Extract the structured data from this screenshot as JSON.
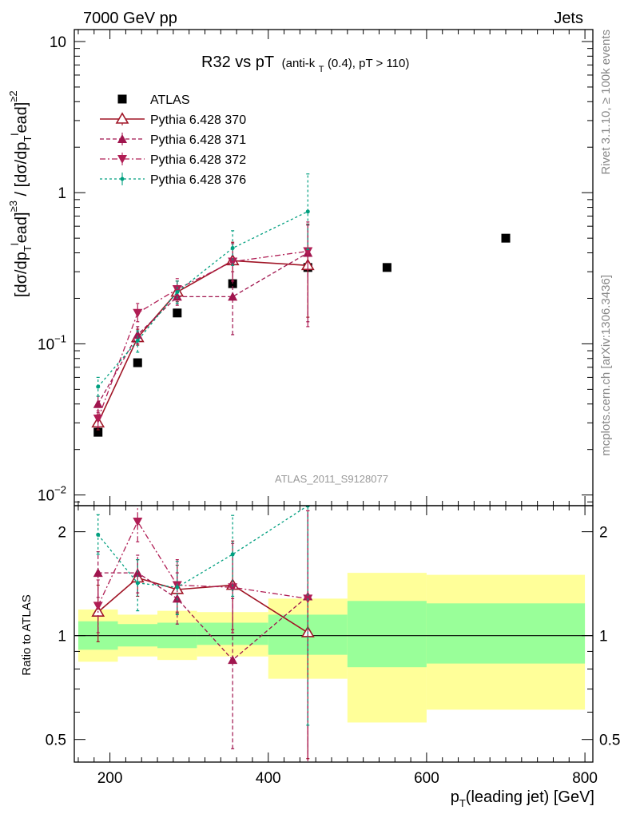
{
  "header": {
    "left": "7000 GeV pp",
    "right": "Jets"
  },
  "plot_title": {
    "main": "R32 vs pT",
    "sub_prefix": "(anti-k",
    "sub_sub": "T",
    "sub_suffix": "(0.4), pT > 110)"
  },
  "side_labels": {
    "rivet": "Rivet 3.1.10, ≥ 100k events",
    "source": "mcplots.cern.ch [arXiv:1306.3436]"
  },
  "analysis_id": "ATLAS_2011_S9128077",
  "colors": {
    "atlas": "#000000",
    "p370": "#a01526",
    "p371": "#a0154e",
    "p372": "#b01d54",
    "p376": "#009f7f",
    "band_inner": "#99ff99",
    "band_outer": "#ffff99"
  },
  "chart_data": [
    {
      "type": "scatter",
      "panel": "main",
      "log_y": true,
      "xlim": [
        155,
        810
      ],
      "ylim": [
        0.0085,
        12
      ],
      "ylabel": "[dσ/dp_T^lead]^≥3 / [dσ/dp_T^lead]^≥2",
      "y_tick_labels": [
        "10^-2",
        "10^-1",
        "1",
        "10"
      ],
      "legend_position": "top-left",
      "series": [
        {
          "name": "ATLAS",
          "marker": "square",
          "color": "#000000",
          "x": [
            185,
            235,
            285,
            355,
            450,
            550,
            700
          ],
          "y": [
            0.026,
            0.075,
            0.16,
            0.25,
            0.32,
            0.32,
            0.5
          ]
        },
        {
          "name": "Pythia 6.428 370",
          "marker": "open-triangle-up",
          "line": "solid",
          "color": "#a01526",
          "x": [
            185,
            235,
            285,
            355,
            450
          ],
          "y": [
            0.03,
            0.11,
            0.22,
            0.355,
            0.33
          ],
          "err_lo": [
            0.027,
            0.098,
            0.19,
            0.26,
            0.15
          ],
          "err_hi": [
            0.034,
            0.125,
            0.26,
            0.47,
            0.62
          ]
        },
        {
          "name": "Pythia 6.428 371",
          "marker": "triangle-up",
          "line": "dashed",
          "color": "#a0154e",
          "x": [
            185,
            235,
            285,
            355,
            450
          ],
          "y": [
            0.04,
            0.115,
            0.205,
            0.205,
            0.4
          ],
          "err_lo": [
            0.035,
            0.1,
            0.18,
            0.115,
            0.14
          ],
          "err_hi": [
            0.045,
            0.13,
            0.235,
            0.3,
            0.61
          ]
        },
        {
          "name": "Pythia 6.428 372",
          "marker": "triangle-down",
          "line": "dashdot",
          "color": "#b01d54",
          "x": [
            185,
            235,
            285,
            355,
            450
          ],
          "y": [
            0.032,
            0.16,
            0.23,
            0.35,
            0.41
          ],
          "err_lo": [
            0.028,
            0.14,
            0.2,
            0.26,
            0.13
          ],
          "err_hi": [
            0.036,
            0.185,
            0.27,
            0.46,
            0.64
          ]
        },
        {
          "name": "Pythia 6.428 376",
          "marker": "dot",
          "line": "dotted",
          "color": "#009f7f",
          "x": [
            185,
            235,
            285,
            355,
            450
          ],
          "y": [
            0.052,
            0.105,
            0.22,
            0.43,
            0.75
          ],
          "err_lo": [
            0.045,
            0.088,
            0.185,
            0.33,
            0.42
          ],
          "err_hi": [
            0.06,
            0.122,
            0.26,
            0.56,
            1.33
          ]
        }
      ]
    },
    {
      "type": "scatter",
      "panel": "ratio",
      "log_y": true,
      "xlim": [
        155,
        810
      ],
      "ylim": [
        0.43,
        2.38
      ],
      "xlabel": "p_T(leading jet) [GeV]",
      "ylabel": "Ratio to ATLAS",
      "x_tick_labels": [
        "200",
        "400",
        "600",
        "800"
      ],
      "y_tick_labels": [
        "0.5",
        "1",
        "2"
      ],
      "reference_line": 1,
      "bands": [
        {
          "x": [
            160,
            210
          ],
          "inner": [
            0.91,
            1.1
          ],
          "outer": [
            0.84,
            1.19
          ]
        },
        {
          "x": [
            210,
            260
          ],
          "inner": [
            0.93,
            1.08
          ],
          "outer": [
            0.87,
            1.15
          ]
        },
        {
          "x": [
            260,
            310
          ],
          "inner": [
            0.92,
            1.09
          ],
          "outer": [
            0.85,
            1.18
          ]
        },
        {
          "x": [
            310,
            400
          ],
          "inner": [
            0.94,
            1.09
          ],
          "outer": [
            0.87,
            1.17
          ]
        },
        {
          "x": [
            400,
            500
          ],
          "inner": [
            0.88,
            1.15
          ],
          "outer": [
            0.75,
            1.28
          ]
        },
        {
          "x": [
            500,
            600
          ],
          "inner": [
            0.81,
            1.26
          ],
          "outer": [
            0.56,
            1.52
          ]
        },
        {
          "x": [
            600,
            800
          ],
          "inner": [
            0.83,
            1.24
          ],
          "outer": [
            0.61,
            1.5
          ]
        }
      ],
      "series": [
        {
          "name": "Pythia 6.428 370",
          "marker": "open-triangle-up",
          "line": "solid",
          "color": "#a01526",
          "x": [
            185,
            235,
            285,
            355,
            450
          ],
          "y": [
            1.17,
            1.47,
            1.36,
            1.4,
            1.02
          ],
          "err_lo": [
            0.96,
            1.3,
            1.16,
            1.04,
            0.44
          ],
          "err_hi": [
            1.4,
            1.66,
            1.6,
            1.88,
            2.3
          ]
        },
        {
          "name": "Pythia 6.428 371",
          "marker": "triangle-up",
          "line": "dashed",
          "color": "#a0154e",
          "x": [
            185,
            235,
            285,
            355,
            450
          ],
          "y": [
            1.52,
            1.52,
            1.28,
            0.85,
            1.3
          ],
          "err_lo": [
            1.29,
            1.33,
            1.08,
            0.47,
            0.4
          ],
          "err_hi": [
            1.75,
            1.71,
            1.52,
            1.28,
            2.3
          ]
        },
        {
          "name": "Pythia 6.428 372",
          "marker": "triangle-down",
          "line": "dashdot",
          "color": "#b01d54",
          "x": [
            185,
            235,
            285,
            355,
            450
          ],
          "y": [
            1.22,
            2.14,
            1.4,
            1.38,
            1.28
          ],
          "err_lo": [
            1.02,
            1.87,
            1.17,
            1.02,
            0.41
          ],
          "err_hi": [
            1.45,
            2.4,
            1.66,
            1.85,
            2.3
          ]
        },
        {
          "name": "Pythia 6.428 376",
          "marker": "dot",
          "line": "dotted",
          "color": "#009f7f",
          "x": [
            185,
            235,
            285,
            355,
            450
          ],
          "y": [
            1.96,
            1.42,
            1.38,
            1.72,
            2.38
          ],
          "err_lo": [
            1.72,
            1.18,
            1.15,
            1.3,
            0.55
          ],
          "err_hi": [
            2.24,
            1.66,
            1.64,
            2.23,
            2.4
          ]
        }
      ]
    }
  ]
}
